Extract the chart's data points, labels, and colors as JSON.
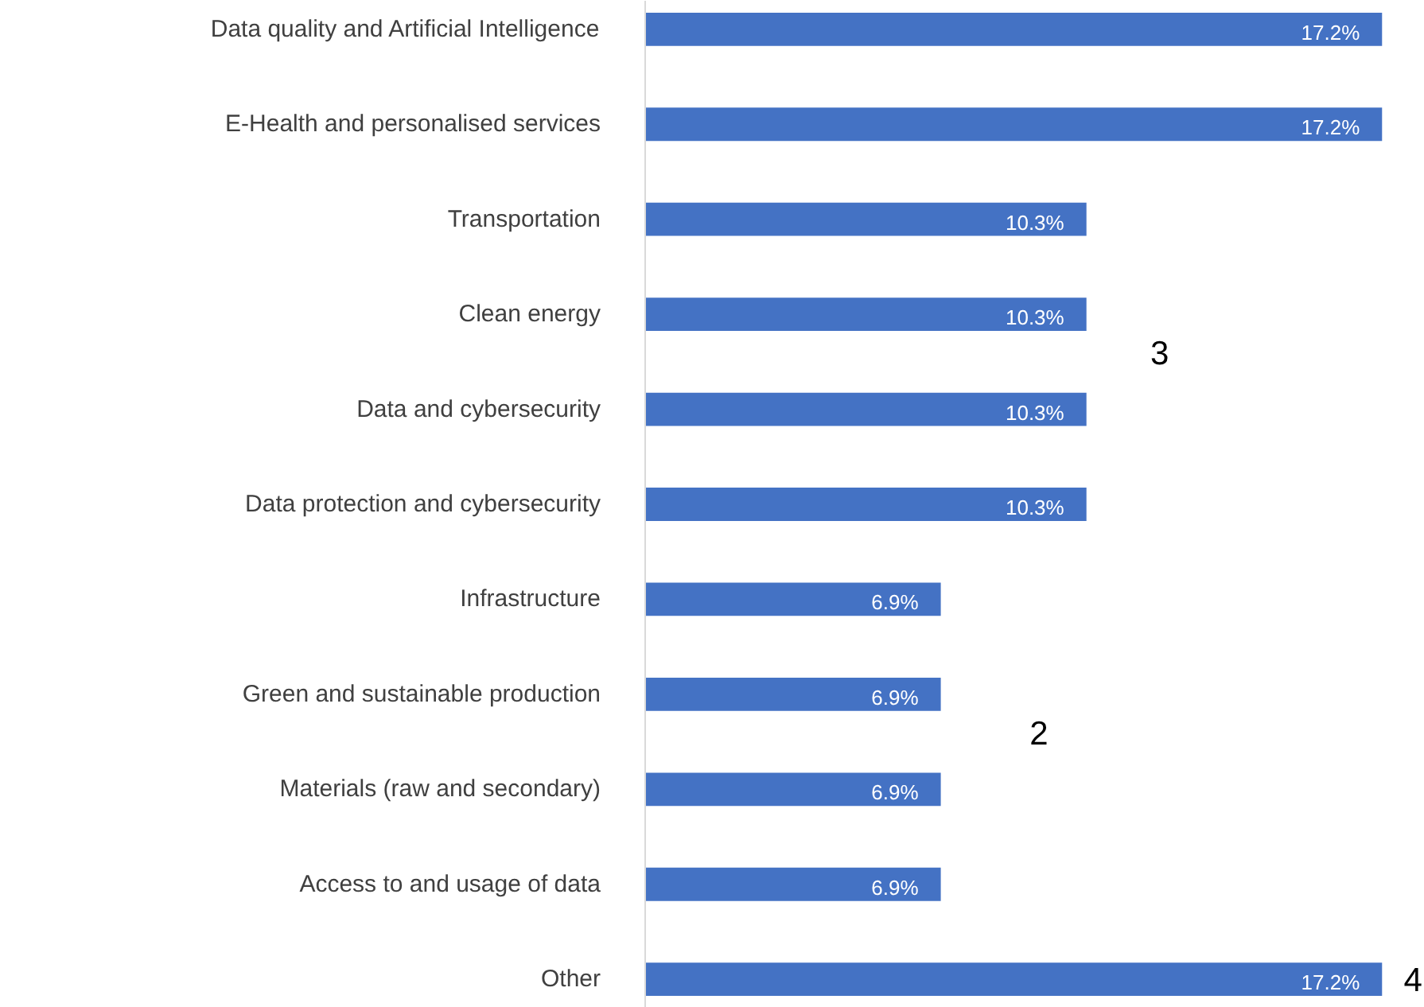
{
  "chart_data": {
    "type": "bar",
    "orientation": "horizontal",
    "categories": [
      "Data quality and Artificial Intelligence",
      "E-Health and personalised services",
      "Transportation",
      "Clean energy",
      "Data and cybersecurity",
      "Data protection and cybersecurity",
      "Infrastructure",
      "Green and sustainable production",
      "Materials (raw and secondary)",
      "Access to and usage of data",
      "Other"
    ],
    "values": [
      17.2,
      17.2,
      10.3,
      10.3,
      10.3,
      10.3,
      6.9,
      6.9,
      6.9,
      6.9,
      17.2
    ],
    "value_labels": [
      "17.2%",
      "17.2%",
      "10.3%",
      "10.3%",
      "10.3%",
      "10.3%",
      "6.9%",
      "6.9%",
      "6.9%",
      "6.9%",
      "17.2%"
    ],
    "color": "#4472c4",
    "grid": false,
    "annotations": [
      "3",
      "2",
      "4"
    ]
  }
}
